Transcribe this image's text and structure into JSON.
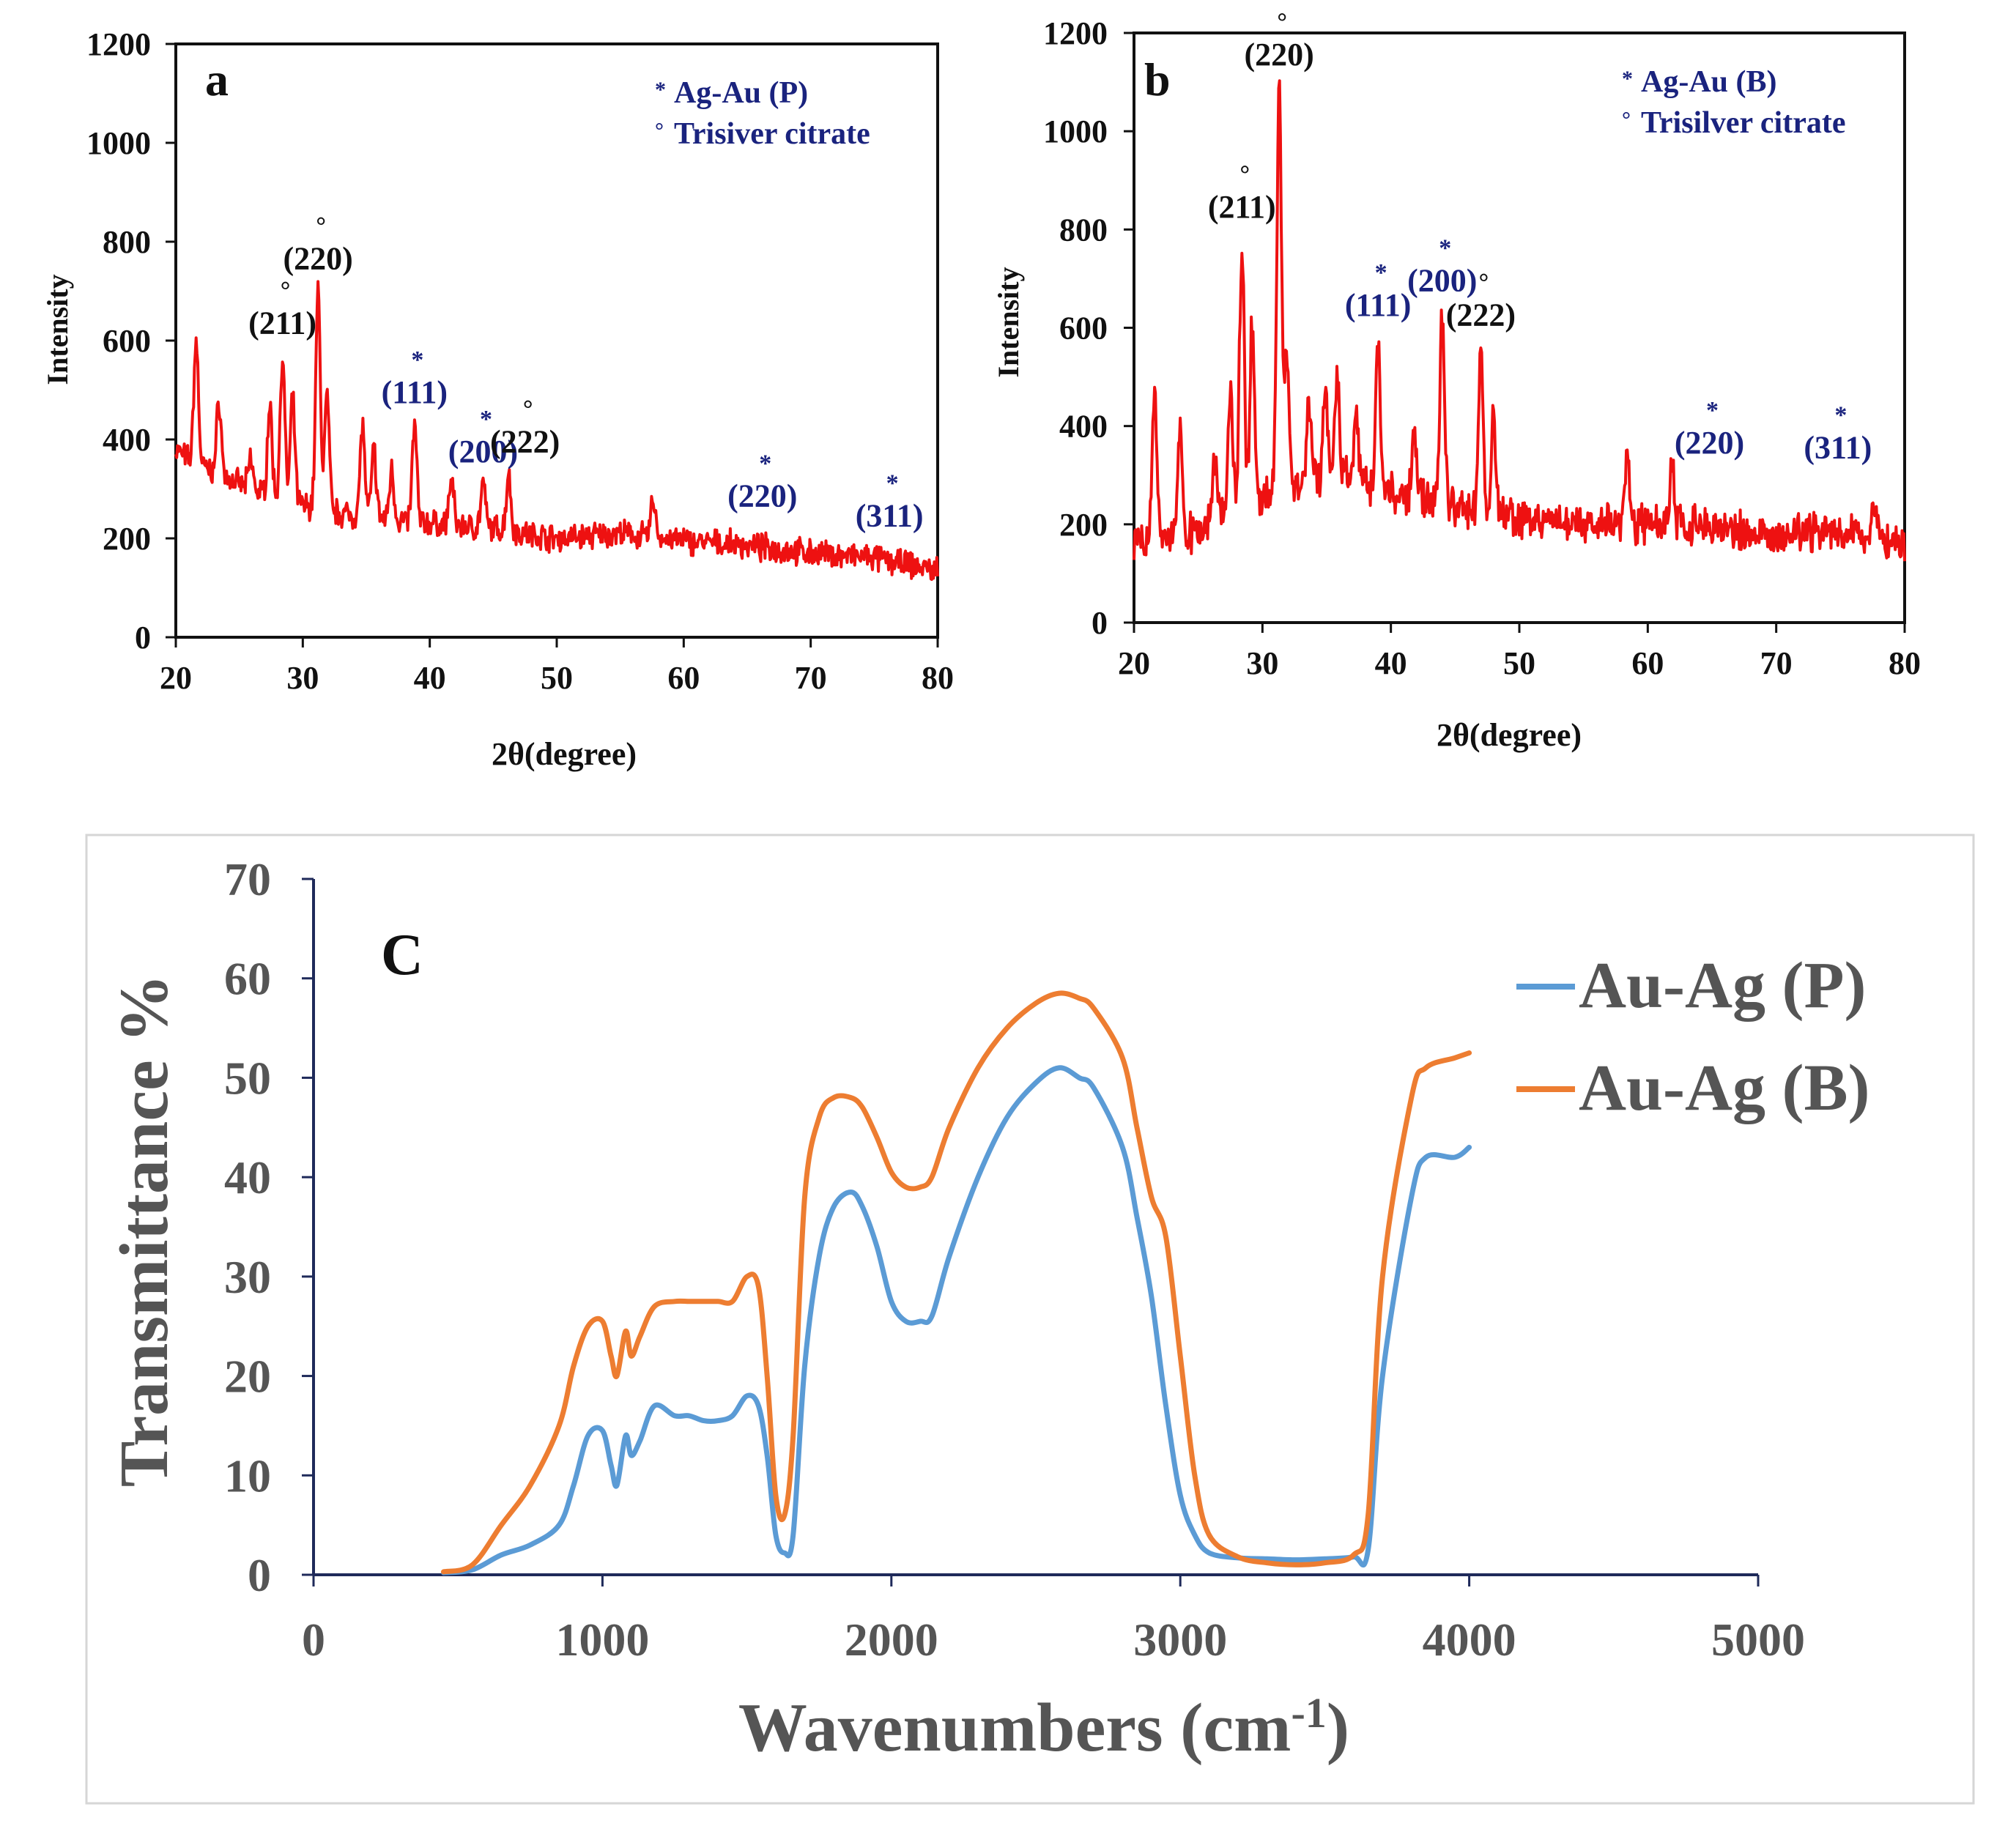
{
  "colors": {
    "xrd_line": "#ee1111",
    "label_black": "#111111",
    "label_blue": "#1a237e",
    "ftir_p": "#5b9bd5",
    "ftir_b": "#ed7d31",
    "axis_gray": "#555555",
    "axis_navy": "#1f2a5a"
  },
  "chart_data": [
    {
      "id": "a",
      "type": "line",
      "panel_letter": "a",
      "xlabel": "2θ(degree)",
      "ylabel": "Intensity",
      "xlim": [
        20,
        80
      ],
      "ylim": [
        0,
        1200
      ],
      "xticks": [
        20,
        30,
        40,
        50,
        60,
        70,
        80
      ],
      "yticks": [
        0,
        200,
        400,
        600,
        800,
        1000,
        1200
      ],
      "legend": [
        {
          "marker": "*",
          "text": "Ag-Au (P)"
        },
        {
          "marker": "°",
          "text": "Trisiver citrate"
        }
      ],
      "baseline": [
        [
          20,
          380
        ],
        [
          21,
          360
        ],
        [
          24,
          320
        ],
        [
          28,
          280
        ],
        [
          32,
          255
        ],
        [
          36,
          240
        ],
        [
          40,
          230
        ],
        [
          45,
          220
        ],
        [
          50,
          200
        ],
        [
          55,
          210
        ],
        [
          60,
          195
        ],
        [
          65,
          185
        ],
        [
          70,
          170
        ],
        [
          75,
          160
        ],
        [
          80,
          135
        ]
      ],
      "peaks": [
        [
          21.6,
          600
        ],
        [
          23.4,
          480
        ],
        [
          25.9,
          360
        ],
        [
          27.4,
          470
        ],
        [
          28.4,
          570
        ],
        [
          29.2,
          480
        ],
        [
          31.2,
          700
        ],
        [
          31.9,
          490
        ],
        [
          34.7,
          430
        ],
        [
          35.6,
          380
        ],
        [
          37.0,
          340
        ],
        [
          38.8,
          430
        ],
        [
          41.7,
          320
        ],
        [
          44.2,
          310
        ],
        [
          46.2,
          330
        ],
        [
          57.6,
          280
        ]
      ],
      "annotations": [
        {
          "x": 28.4,
          "y": 570,
          "marker": "°",
          "hkl": "(211)",
          "color": "black"
        },
        {
          "x": 31.2,
          "y": 700,
          "marker": "°",
          "hkl": "(220)",
          "color": "black"
        },
        {
          "x": 38.8,
          "y": 430,
          "marker": "*",
          "hkl": "(111)",
          "color": "blue"
        },
        {
          "x": 44.2,
          "y": 310,
          "marker": "*",
          "hkl": "(200)",
          "color": "blue"
        },
        {
          "x": 47.5,
          "y": 330,
          "marker": "°",
          "hkl": "(222)",
          "color": "black"
        },
        {
          "x": 66.2,
          "y": 220,
          "marker": "*",
          "hkl": "(220)",
          "color": "blue"
        },
        {
          "x": 76.2,
          "y": 180,
          "marker": "*",
          "hkl": "(311)",
          "color": "blue"
        }
      ],
      "noise": 40,
      "seed": 7
    },
    {
      "id": "b",
      "type": "line",
      "panel_letter": "b",
      "xlabel": "2θ(degree)",
      "ylabel": "Intensity",
      "xlim": [
        20,
        80
      ],
      "ylim": [
        0,
        1200
      ],
      "xticks": [
        20,
        30,
        40,
        50,
        60,
        70,
        80
      ],
      "yticks": [
        0,
        200,
        400,
        600,
        800,
        1000,
        1200
      ],
      "legend": [
        {
          "marker": "*",
          "text": "Ag-Au (B)"
        },
        {
          "marker": "°",
          "text": "Trisilver citrate"
        }
      ],
      "baseline": [
        [
          20,
          150
        ],
        [
          24,
          180
        ],
        [
          28,
          230
        ],
        [
          32,
          280
        ],
        [
          36,
          300
        ],
        [
          40,
          260
        ],
        [
          44,
          240
        ],
        [
          48,
          220
        ],
        [
          52,
          200
        ],
        [
          56,
          200
        ],
        [
          60,
          200
        ],
        [
          65,
          190
        ],
        [
          70,
          180
        ],
        [
          75,
          185
        ],
        [
          80,
          160
        ]
      ],
      "peaks": [
        [
          21.6,
          470
        ],
        [
          23.6,
          390
        ],
        [
          26.3,
          330
        ],
        [
          27.5,
          470
        ],
        [
          28.4,
          780
        ],
        [
          29.2,
          610
        ],
        [
          31.3,
          1090
        ],
        [
          31.9,
          540
        ],
        [
          33.6,
          450
        ],
        [
          34.9,
          460
        ],
        [
          35.8,
          500
        ],
        [
          37.3,
          420
        ],
        [
          39.0,
          580
        ],
        [
          41.8,
          400
        ],
        [
          44.0,
          630
        ],
        [
          47.0,
          560
        ],
        [
          48.0,
          410
        ],
        [
          58.4,
          350
        ],
        [
          61.9,
          310
        ],
        [
          77.6,
          240
        ]
      ],
      "annotations": [
        {
          "x": 28.4,
          "y": 780,
          "marker": "°",
          "hkl": "(211)",
          "color": "black"
        },
        {
          "x": 31.3,
          "y": 1090,
          "marker": "°",
          "hkl": "(220)",
          "color": "black"
        },
        {
          "x": 39.0,
          "y": 580,
          "marker": "*",
          "hkl": "(111)",
          "color": "blue"
        },
        {
          "x": 44.0,
          "y": 630,
          "marker": "*",
          "hkl": "(200)",
          "color": "blue"
        },
        {
          "x": 47.0,
          "y": 560,
          "marker": "°",
          "hkl": "(222)",
          "color": "black"
        },
        {
          "x": 64.8,
          "y": 300,
          "marker": "*",
          "hkl": "(220)",
          "color": "blue"
        },
        {
          "x": 74.8,
          "y": 290,
          "marker": "*",
          "hkl": "(311)",
          "color": "blue"
        }
      ],
      "noise": 60,
      "seed": 13
    },
    {
      "id": "c",
      "type": "line",
      "panel_letter": "C",
      "xlabel": "Wavenumbers (cm",
      "xlabel_sup": "-1",
      "xlabel_end": ")",
      "ylabel": "Transmittance %",
      "xlim": [
        0,
        5000
      ],
      "ylim": [
        0,
        70
      ],
      "xticks": [
        0,
        1000,
        2000,
        3000,
        4000,
        5000
      ],
      "yticks": [
        0,
        10,
        20,
        30,
        40,
        50,
        60,
        70
      ],
      "series": [
        {
          "name": "Au-Ag (P)",
          "color": "#5b9bd5",
          "x": [
            450,
            550,
            650,
            750,
            850,
            900,
            950,
            1000,
            1030,
            1050,
            1080,
            1100,
            1130,
            1180,
            1250,
            1300,
            1350,
            1400,
            1450,
            1500,
            1540,
            1570,
            1600,
            1630,
            1660,
            1700,
            1750,
            1800,
            1860,
            1900,
            1950,
            2000,
            2050,
            2100,
            2140,
            2200,
            2300,
            2400,
            2500,
            2580,
            2650,
            2700,
            2800,
            2850,
            2900,
            2950,
            3000,
            3050,
            3100,
            3200,
            3300,
            3400,
            3500,
            3600,
            3650,
            3700,
            3800,
            3850,
            3950,
            4000
          ],
          "y": [
            0.2,
            0.5,
            2,
            3,
            5,
            9,
            14,
            14.5,
            11,
            9,
            14,
            12,
            13.5,
            17,
            16,
            16,
            15.5,
            15.5,
            16,
            18,
            17,
            12,
            4,
            2.2,
            4,
            21,
            32,
            37,
            38.5,
            37,
            33,
            27.5,
            25.5,
            25.5,
            26,
            32,
            40,
            46,
            49.5,
            51,
            50,
            49,
            43,
            36,
            28,
            17,
            8,
            4,
            2.2,
            1.7,
            1.6,
            1.5,
            1.6,
            1.8,
            2.5,
            20,
            38,
            42,
            42,
            43
          ]
        },
        {
          "name": "Au-Ag (B)",
          "color": "#ed7d31",
          "x": [
            450,
            550,
            650,
            750,
            850,
            900,
            950,
            1000,
            1030,
            1050,
            1080,
            1100,
            1130,
            1180,
            1250,
            1300,
            1350,
            1400,
            1450,
            1500,
            1540,
            1570,
            1600,
            1630,
            1660,
            1700,
            1750,
            1800,
            1860,
            1900,
            1950,
            2000,
            2050,
            2100,
            2140,
            2200,
            2300,
            2400,
            2500,
            2580,
            2650,
            2700,
            2800,
            2850,
            2900,
            2950,
            3000,
            3050,
            3100,
            3200,
            3300,
            3400,
            3500,
            3600,
            3650,
            3700,
            3800,
            3850,
            3950,
            4000
          ],
          "y": [
            0.3,
            1,
            5,
            9,
            15,
            21,
            25,
            25.5,
            22,
            20,
            24.5,
            22,
            24,
            27,
            27.5,
            27.5,
            27.5,
            27.5,
            27.5,
            30,
            29,
            20,
            8,
            6,
            14,
            38,
            46,
            48,
            48,
            47,
            44,
            40.5,
            39,
            39,
            40,
            45,
            51,
            55,
            57.5,
            58.5,
            58,
            57,
            52,
            45,
            38,
            34,
            22,
            10,
            4,
            1.8,
            1.2,
            1,
            1.2,
            2,
            6,
            30,
            48,
            51,
            52,
            52.5
          ]
        }
      ]
    }
  ]
}
